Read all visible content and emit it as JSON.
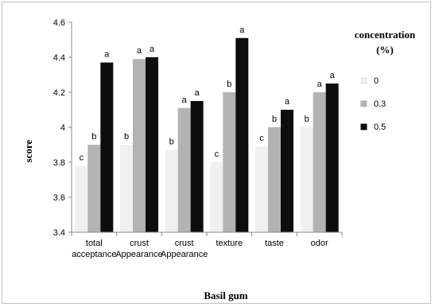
{
  "chart_data": {
    "type": "bar",
    "title": "",
    "xlabel": "Basil gum",
    "ylabel": "score",
    "ylim": [
      3.4,
      4.6
    ],
    "yticks": [
      "3.4",
      "3.6",
      "3.8",
      "4",
      "4.2",
      "4.4",
      "4.6"
    ],
    "grid": false,
    "legend_title_line1": "concentration",
    "legend_title_line2": "(%)",
    "legend_position": "right",
    "categories": [
      [
        "total",
        "acceptance"
      ],
      [
        "crust",
        "Appearance"
      ],
      [
        "crust",
        "Appearance"
      ],
      [
        "texture"
      ],
      [
        "taste"
      ],
      [
        "odor"
      ]
    ],
    "series": [
      {
        "name": "0",
        "color": "#f0f0f0",
        "values": [
          3.78,
          3.9,
          3.87,
          3.8,
          3.89,
          4.0
        ],
        "letters": [
          "c",
          "b",
          "b",
          "c",
          "c",
          "b"
        ]
      },
      {
        "name": "0.3",
        "color": "#b3b3b3",
        "values": [
          3.9,
          4.39,
          4.11,
          4.2,
          4.0,
          4.2
        ],
        "letters": [
          "b",
          "a",
          "a",
          "b",
          "b",
          "a"
        ]
      },
      {
        "name": "0.5",
        "color": "#0d0d0d",
        "values": [
          4.37,
          4.4,
          4.15,
          4.51,
          4.1,
          4.25
        ],
        "letters": [
          "a",
          "a",
          "a",
          "a",
          "a",
          "a"
        ]
      }
    ]
  }
}
